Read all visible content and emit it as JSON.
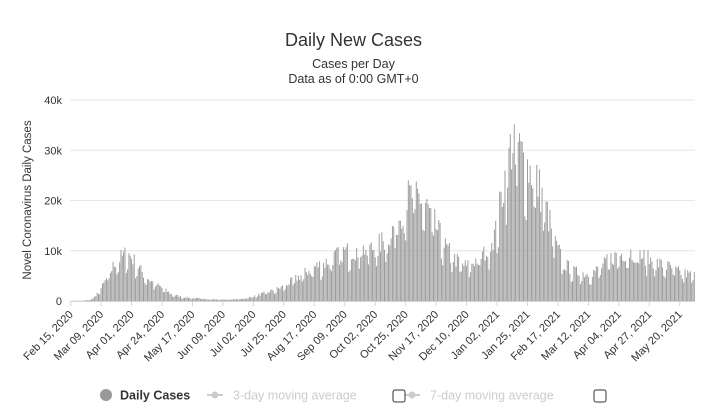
{
  "chart_data": {
    "type": "bar",
    "title": "Daily New Cases",
    "subtitle": "Cases per Day",
    "subtitle2": "Data as of 0:00 GMT+0",
    "ylabel": "Novel Coronavirus Daily Cases",
    "ylim": [
      0,
      40000
    ],
    "y_ticks": [
      {
        "value": 0,
        "label": "0"
      },
      {
        "value": 10000,
        "label": "10k"
      },
      {
        "value": 20000,
        "label": "20k"
      },
      {
        "value": 30000,
        "label": "30k"
      },
      {
        "value": 40000,
        "label": "40k"
      }
    ],
    "x_start": "2020-02-15",
    "x_end": "2021-05-31",
    "x_ticks": [
      "Feb 15, 2020",
      "Mar 09, 2020",
      "Apr 01, 2020",
      "Apr 24, 2020",
      "May 17, 2020",
      "Jun 09, 2020",
      "Jul 02, 2020",
      "Jul 25, 2020",
      "Aug 17, 2020",
      "Sep 09, 2020",
      "Oct 02, 2020",
      "Oct 25, 2020",
      "Nov 17, 2020",
      "Dec 10, 2020",
      "Jan 02, 2021",
      "Jan 25, 2021",
      "Feb 17, 2021",
      "Mar 12, 2021",
      "Apr 04, 2021",
      "Apr 27, 2021",
      "May 20, 2021"
    ],
    "bar_color": "#999999",
    "grid": true,
    "legend_position": "bottom",
    "legend": [
      {
        "label": "Daily Cases",
        "active": true,
        "color": "#999999"
      },
      {
        "label": "3-day moving average",
        "active": false,
        "color": "#cccccc"
      },
      {
        "label": "7-day moving average",
        "active": false,
        "color": "#cccccc"
      }
    ],
    "series": [
      {
        "values_by_date": [
          [
            "2020-02-15",
            0
          ],
          [
            "2020-02-25",
            50
          ],
          [
            "2020-03-01",
            250
          ],
          [
            "2020-03-05",
            1000
          ],
          [
            "2020-03-10",
            3000
          ],
          [
            "2020-03-15",
            5500
          ],
          [
            "2020-03-20",
            8000
          ],
          [
            "2020-03-25",
            9000
          ],
          [
            "2020-03-29",
            9800
          ],
          [
            "2020-04-02",
            8500
          ],
          [
            "2020-04-06",
            7000
          ],
          [
            "2020-04-10",
            5500
          ],
          [
            "2020-04-15",
            4200
          ],
          [
            "2020-04-20",
            3300
          ],
          [
            "2020-04-25",
            2500
          ],
          [
            "2020-05-01",
            1400
          ],
          [
            "2020-05-08",
            900
          ],
          [
            "2020-05-15",
            650
          ],
          [
            "2020-05-25",
            450
          ],
          [
            "2020-06-05",
            300
          ],
          [
            "2020-06-15",
            300
          ],
          [
            "2020-06-25",
            500
          ],
          [
            "2020-07-02",
            900
          ],
          [
            "2020-07-10",
            1600
          ],
          [
            "2020-07-18",
            2200
          ],
          [
            "2020-07-25",
            3000
          ],
          [
            "2020-08-01",
            4200
          ],
          [
            "2020-08-10",
            5700
          ],
          [
            "2020-08-17",
            6900
          ],
          [
            "2020-08-25",
            7700
          ],
          [
            "2020-09-01",
            9000
          ],
          [
            "2020-09-09",
            10000
          ],
          [
            "2020-09-17",
            10300
          ],
          [
            "2020-09-25",
            10600
          ],
          [
            "2020-10-02",
            10800
          ],
          [
            "2020-10-10",
            12500
          ],
          [
            "2020-10-18",
            15500
          ],
          [
            "2020-10-25",
            20500
          ],
          [
            "2020-11-01",
            21800
          ],
          [
            "2020-11-05",
            21000
          ],
          [
            "2020-11-10",
            19000
          ],
          [
            "2020-11-17",
            15000
          ],
          [
            "2020-11-24",
            11000
          ],
          [
            "2020-12-01",
            8500
          ],
          [
            "2020-12-10",
            7000
          ],
          [
            "2020-12-18",
            8500
          ],
          [
            "2020-12-25",
            10000
          ],
          [
            "2021-01-01",
            14000
          ],
          [
            "2021-01-06",
            22000
          ],
          [
            "2021-01-11",
            30000
          ],
          [
            "2021-01-15",
            33000
          ],
          [
            "2021-01-20",
            30000
          ],
          [
            "2021-01-25",
            27500
          ],
          [
            "2021-02-01",
            24500
          ],
          [
            "2021-02-08",
            19000
          ],
          [
            "2021-02-15",
            11500
          ],
          [
            "2021-02-22",
            7500
          ],
          [
            "2021-03-01",
            6000
          ],
          [
            "2021-03-12",
            5500
          ],
          [
            "2021-03-20",
            6500
          ],
          [
            "2021-03-28",
            8500
          ],
          [
            "2021-04-04",
            9500
          ],
          [
            "2021-04-12",
            10000
          ],
          [
            "2021-04-20",
            9300
          ],
          [
            "2021-04-27",
            8500
          ],
          [
            "2021-05-05",
            7500
          ],
          [
            "2021-05-13",
            6800
          ],
          [
            "2021-05-20",
            5800
          ],
          [
            "2021-05-31",
            5200
          ]
        ]
      }
    ]
  }
}
